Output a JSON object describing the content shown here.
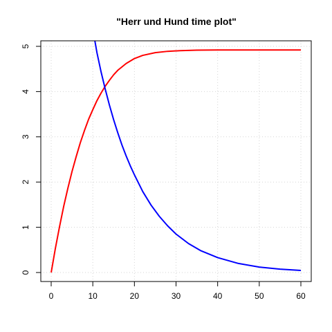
{
  "chart_data": {
    "type": "line",
    "title": "\"Herr und Hund time plot\"",
    "xlabel": "",
    "ylabel": "",
    "xlim": [
      0,
      60
    ],
    "ylim": [
      0,
      5
    ],
    "x_ticks": [
      0,
      10,
      20,
      30,
      40,
      50,
      60
    ],
    "y_ticks": [
      0,
      1,
      2,
      3,
      4,
      5
    ],
    "grid": true,
    "series": [
      {
        "color": "#e41a1c",
        "line_color": "#ff0000",
        "x": [
          0,
          1,
          2,
          3,
          4,
          5,
          6,
          7,
          8,
          9,
          10,
          11,
          12,
          13,
          14,
          15,
          16,
          18,
          20,
          22,
          25,
          28,
          31,
          35,
          40,
          45,
          50,
          55,
          60
        ],
        "y": [
          0,
          0.53,
          1.01,
          1.46,
          1.86,
          2.23,
          2.56,
          2.87,
          3.14,
          3.39,
          3.6,
          3.8,
          3.97,
          4.12,
          4.25,
          4.37,
          4.47,
          4.62,
          4.73,
          4.8,
          4.86,
          4.89,
          4.905,
          4.915,
          4.92,
          4.92,
          4.92,
          4.92,
          4.92
        ]
      },
      {
        "color": "#0000ff",
        "line_color": "#0000ff",
        "x": [
          10.5,
          11,
          12,
          13,
          14,
          15,
          16,
          17,
          18,
          19,
          20,
          22,
          24,
          26,
          28,
          30,
          33,
          36,
          40,
          45,
          50,
          55,
          60
        ],
        "y": [
          5.12,
          4.86,
          4.43,
          4.05,
          3.7,
          3.38,
          3.09,
          2.82,
          2.58,
          2.36,
          2.16,
          1.79,
          1.49,
          1.24,
          1.03,
          0.85,
          0.64,
          0.48,
          0.33,
          0.2,
          0.12,
          0.075,
          0.045
        ]
      }
    ]
  }
}
